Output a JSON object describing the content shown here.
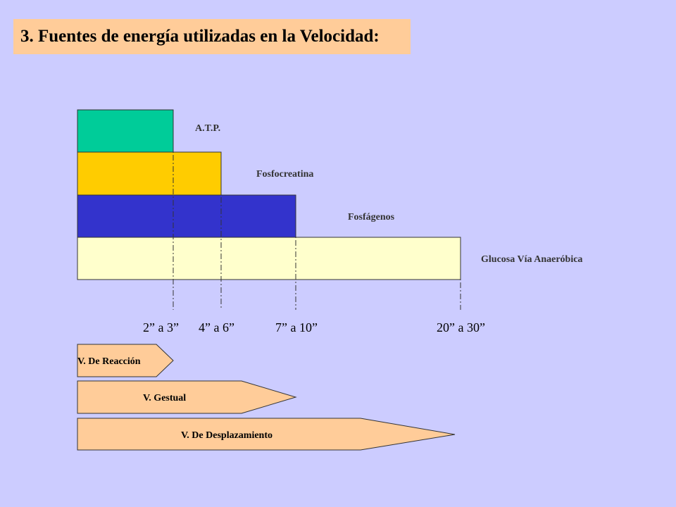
{
  "title": "3. Fuentes de energía utilizadas en la Velocidad:",
  "bars": [
    {
      "label": "A.T.P.",
      "color": "#00cc99"
    },
    {
      "label": "Fosfocreatina",
      "color": "#ffcc00"
    },
    {
      "label": "Fosfágenos",
      "color": "#3333cc"
    },
    {
      "label": "Glucosa Vía Anaeróbica",
      "color": "#ffffcc"
    }
  ],
  "times": [
    "2” a 3”",
    "4” a 6”",
    "7” a 10”",
    "20” a 30”"
  ],
  "arrows": [
    {
      "label": "V. De Reacción",
      "color": "#ffcc99"
    },
    {
      "label": "V. Gestual",
      "color": "#ffcc99"
    },
    {
      "label": "V. De Desplazamiento",
      "color": "#ffcc99"
    }
  ]
}
